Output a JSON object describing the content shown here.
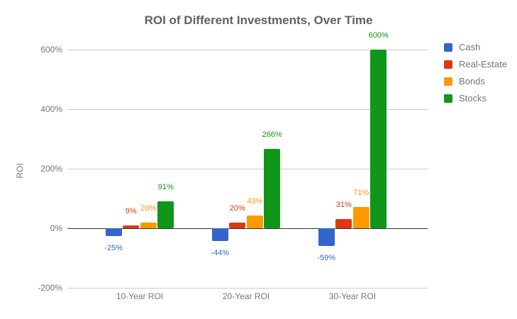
{
  "chart_data": {
    "type": "bar",
    "title": "ROI of Different Investments, Over Time",
    "xlabel": "",
    "ylabel": "ROI",
    "categories": [
      "10-Year ROI",
      "20-Year ROI",
      "30-Year ROI"
    ],
    "series": [
      {
        "name": "Cash",
        "color": "#3366CC",
        "values": [
          -25,
          -44,
          -59
        ]
      },
      {
        "name": "Real-Estate",
        "color": "#DC3912",
        "values": [
          9,
          20,
          31
        ]
      },
      {
        "name": "Bonds",
        "color": "#FF9900",
        "values": [
          20,
          43,
          71
        ]
      },
      {
        "name": "Stocks",
        "color": "#109618",
        "values": [
          91,
          266,
          600
        ]
      }
    ],
    "value_suffix": "%",
    "y_ticks": [
      600,
      400,
      200,
      0,
      -200
    ],
    "y_tick_labels": [
      "600%",
      "400%",
      "200%",
      "0%",
      "-200%"
    ],
    "ylim": [
      -200,
      600
    ],
    "grid": true,
    "legend_position": "right",
    "colors": {
      "title_text": "#616161",
      "axis_text": "#757575",
      "gridline": "#cccccc",
      "zero_axis": "#333333",
      "background": "#ffffff"
    }
  }
}
